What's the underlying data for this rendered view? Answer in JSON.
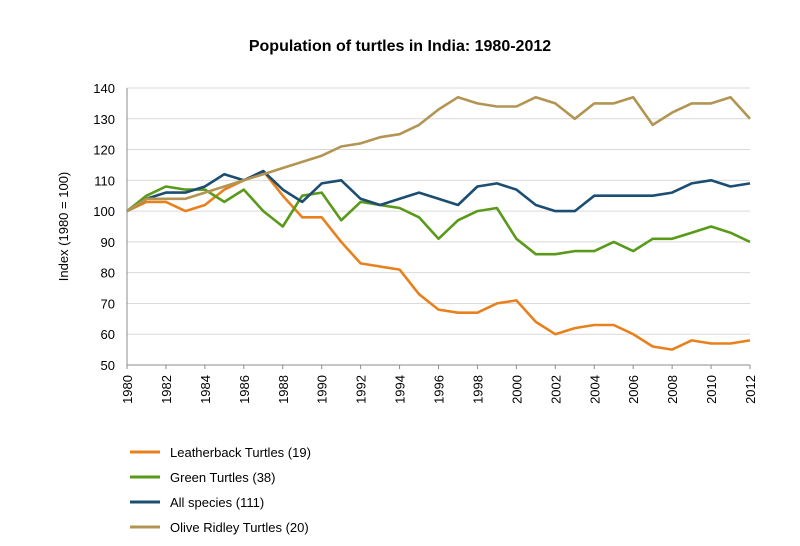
{
  "chart_data": {
    "type": "line",
    "title": "Population of turtles in India: 1980-2012",
    "xlabel": "",
    "ylabel": "Index (1980 = 100)",
    "ylim": [
      50,
      140
    ],
    "yticks": [
      50,
      60,
      70,
      80,
      90,
      100,
      110,
      120,
      130,
      140
    ],
    "xlim": [
      1980,
      2012
    ],
    "xticks": [
      1980,
      1982,
      1984,
      1986,
      1988,
      1990,
      1992,
      1994,
      1996,
      1998,
      2000,
      2002,
      2004,
      2006,
      2008,
      2010,
      2012
    ],
    "grid": "horizontal",
    "legend_position": "bottom",
    "x": [
      1980,
      1981,
      1982,
      1983,
      1984,
      1985,
      1986,
      1987,
      1988,
      1989,
      1990,
      1991,
      1992,
      1993,
      1994,
      1995,
      1996,
      1997,
      1998,
      1999,
      2000,
      2001,
      2002,
      2003,
      2004,
      2005,
      2006,
      2007,
      2008,
      2009,
      2010,
      2011,
      2012
    ],
    "series": [
      {
        "name": "Leatherback Turtles (19)",
        "color": "#e8811c",
        "values": [
          100,
          103,
          103,
          100,
          102,
          107,
          110,
          113,
          105,
          98,
          98,
          90,
          83,
          82,
          81,
          73,
          68,
          67,
          67,
          70,
          71,
          64,
          60,
          62,
          63,
          63,
          60,
          56,
          55,
          58,
          57,
          57,
          58
        ]
      },
      {
        "name": "Green Turtles (38)",
        "color": "#5a9a1a",
        "values": [
          100,
          105,
          108,
          107,
          107,
          103,
          107,
          100,
          95,
          105,
          106,
          97,
          103,
          102,
          101,
          98,
          91,
          97,
          100,
          101,
          91,
          86,
          86,
          87,
          87,
          90,
          87,
          91,
          91,
          93,
          95,
          93,
          90
        ]
      },
      {
        "name": "All species (111)",
        "color": "#1b4e72",
        "values": [
          100,
          104,
          106,
          106,
          108,
          112,
          110,
          113,
          107,
          103,
          109,
          110,
          104,
          102,
          104,
          106,
          104,
          102,
          108,
          109,
          107,
          102,
          100,
          100,
          105,
          105,
          105,
          105,
          106,
          109,
          110,
          108,
          109
        ]
      },
      {
        "name": "Olive Ridley Turtles (20)",
        "color": "#b39553",
        "values": [
          100,
          104,
          104,
          104,
          106,
          108,
          110,
          112,
          114,
          116,
          118,
          121,
          122,
          124,
          125,
          128,
          133,
          137,
          135,
          134,
          134,
          137,
          135,
          130,
          135,
          135,
          137,
          128,
          132,
          135,
          135,
          137,
          130
        ]
      }
    ]
  }
}
